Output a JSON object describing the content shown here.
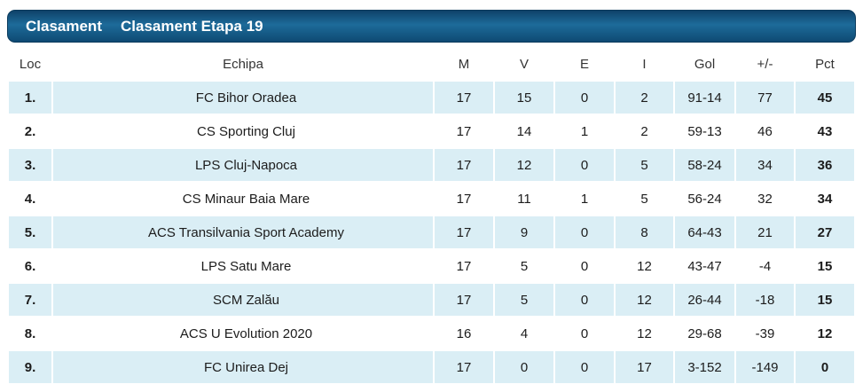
{
  "title_bar": {
    "tab_label": "Clasament",
    "subtitle": "Clasament Etapa 19"
  },
  "table": {
    "columns": [
      {
        "key": "loc",
        "label": "Loc"
      },
      {
        "key": "echipa",
        "label": "Echipa"
      },
      {
        "key": "m",
        "label": "M"
      },
      {
        "key": "v",
        "label": "V"
      },
      {
        "key": "e",
        "label": "E"
      },
      {
        "key": "i",
        "label": "I"
      },
      {
        "key": "gol",
        "label": "Gol"
      },
      {
        "key": "diff",
        "label": "+/-"
      },
      {
        "key": "pct",
        "label": "Pct"
      }
    ],
    "rows": [
      {
        "loc": "1.",
        "echipa": "FC Bihor Oradea",
        "m": "17",
        "v": "15",
        "e": "0",
        "i": "2",
        "gol": "91-14",
        "diff": "77",
        "pct": "45"
      },
      {
        "loc": "2.",
        "echipa": "CS Sporting Cluj",
        "m": "17",
        "v": "14",
        "e": "1",
        "i": "2",
        "gol": "59-13",
        "diff": "46",
        "pct": "43"
      },
      {
        "loc": "3.",
        "echipa": "LPS Cluj-Napoca",
        "m": "17",
        "v": "12",
        "e": "0",
        "i": "5",
        "gol": "58-24",
        "diff": "34",
        "pct": "36"
      },
      {
        "loc": "4.",
        "echipa": "CS Minaur Baia Mare",
        "m": "17",
        "v": "11",
        "e": "1",
        "i": "5",
        "gol": "56-24",
        "diff": "32",
        "pct": "34"
      },
      {
        "loc": "5.",
        "echipa": "ACS Transilvania Sport Academy",
        "m": "17",
        "v": "9",
        "e": "0",
        "i": "8",
        "gol": "64-43",
        "diff": "21",
        "pct": "27"
      },
      {
        "loc": "6.",
        "echipa": "LPS Satu Mare",
        "m": "17",
        "v": "5",
        "e": "0",
        "i": "12",
        "gol": "43-47",
        "diff": "-4",
        "pct": "15"
      },
      {
        "loc": "7.",
        "echipa": "SCM Zalău",
        "m": "17",
        "v": "5",
        "e": "0",
        "i": "12",
        "gol": "26-44",
        "diff": "-18",
        "pct": "15"
      },
      {
        "loc": "8.",
        "echipa": "ACS U Evolution 2020",
        "m": "16",
        "v": "4",
        "e": "0",
        "i": "12",
        "gol": "29-68",
        "diff": "-39",
        "pct": "12"
      },
      {
        "loc": "9.",
        "echipa": "FC Unirea Dej",
        "m": "17",
        "v": "0",
        "e": "0",
        "i": "17",
        "gol": "3-152",
        "diff": "-149",
        "pct": "0"
      }
    ]
  },
  "colors": {
    "bar_gradient_top": "#0f4269",
    "bar_gradient_mid": "#1d6b9a",
    "bar_gradient_bottom": "#0e4a73",
    "row_alt": "#daeef5",
    "title_text": "#ffffff",
    "body_text": "#1c1c1c"
  }
}
